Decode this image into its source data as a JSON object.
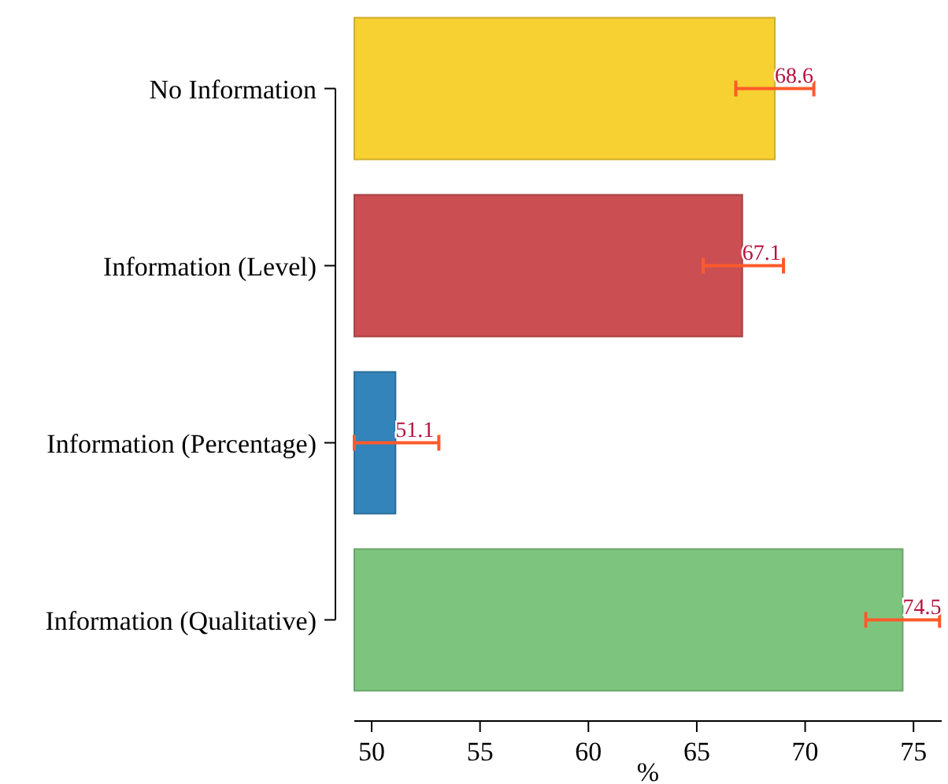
{
  "chart_data": {
    "type": "bar",
    "orientation": "horizontal",
    "xlabel": "%",
    "categories": [
      "No Information",
      "Information (Level)",
      "Information (Percentage)",
      "Information (Qualitative)"
    ],
    "values": [
      68.6,
      67.1,
      51.1,
      74.5
    ],
    "colors": [
      "#f7d031",
      "#cb4e52",
      "#3384bb",
      "#7dc57e"
    ],
    "errors": [
      [
        66.8,
        70.4
      ],
      [
        65.3,
        69.0
      ],
      [
        49.2,
        53.1
      ],
      [
        72.8,
        76.2
      ]
    ],
    "data_labels": true,
    "xlim": [
      49.2,
      76.3
    ],
    "xticks": [
      50,
      55,
      60,
      65,
      70,
      75
    ]
  }
}
